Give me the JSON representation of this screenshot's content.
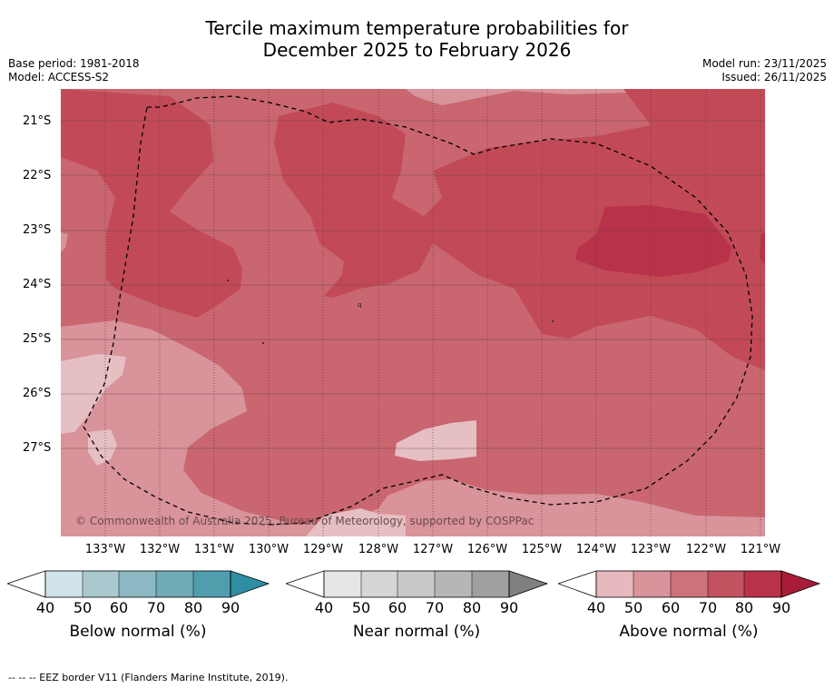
{
  "title": {
    "line1": "Tercile maximum temperature probabilities for",
    "line2": "December 2025 to February 2026"
  },
  "meta_left": {
    "base_period": "Base period: 1981-2018",
    "model": "Model: ACCESS-S2"
  },
  "meta_right": {
    "model_run": "Model run: 23/11/2025",
    "issued": "Issued: 26/11/2025"
  },
  "map": {
    "latitude_labels": [
      "21°S",
      "22°S",
      "23°S",
      "24°S",
      "25°S",
      "26°S",
      "27°S"
    ],
    "longitude_labels": [
      "133°W",
      "132°W",
      "131°W",
      "130°W",
      "129°W",
      "128°W",
      "127°W",
      "126°W",
      "125°W",
      "124°W",
      "123°W",
      "122°W",
      "121°W"
    ],
    "copyright": "© Commonwealth of Australia 2025, Bureau of Meteorology, supported by COSPPac",
    "colors": {
      "above_50": "#d9939a",
      "above_60": "#c9666f",
      "above_70": "#c24a57",
      "above_80": "#b8334a",
      "above_40": "#e6bfc3",
      "eez_line": "#000000"
    }
  },
  "colorbars": [
    {
      "title": "Below normal (%)",
      "ticks": [
        "40",
        "50",
        "60",
        "70",
        "80",
        "90"
      ],
      "colors": [
        "#cfe3e8",
        "#a9c9cf",
        "#8bb8c2",
        "#6faab7",
        "#4f9eae",
        "#2f8ea3"
      ]
    },
    {
      "title": "Near normal (%)",
      "ticks": [
        "40",
        "50",
        "60",
        "70",
        "80",
        "90"
      ],
      "colors": [
        "#e6e6e6",
        "#d6d6d6",
        "#c8c8c8",
        "#b6b6b6",
        "#a0a0a0",
        "#808080"
      ]
    },
    {
      "title": "Above normal (%)",
      "ticks": [
        "40",
        "50",
        "60",
        "70",
        "80",
        "90"
      ],
      "colors": [
        "#e6b9be",
        "#d9939a",
        "#cd727a",
        "#c2525e",
        "#b8334a",
        "#a81c3a"
      ]
    }
  ],
  "footer": "--  --  -- EEZ border V11 (Flanders Marine Institute, 2019)."
}
